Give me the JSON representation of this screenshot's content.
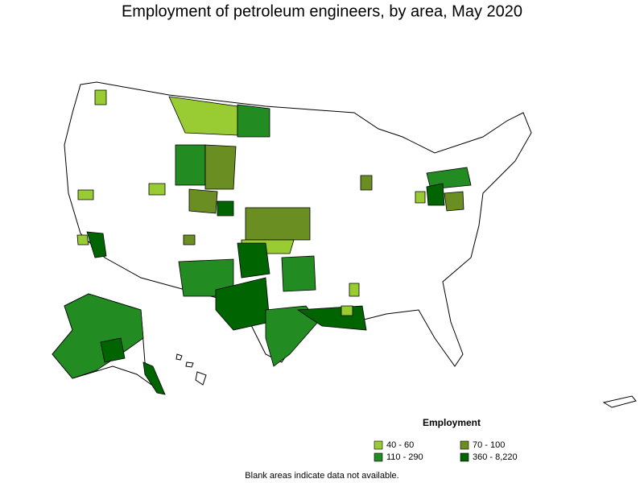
{
  "title": "Employment of petroleum engineers, by area, May 2020",
  "legend": {
    "title": "Employment",
    "items": [
      {
        "label": "40 - 60",
        "color": "#99cc33"
      },
      {
        "label": "70 - 100",
        "color": "#6b8e23"
      },
      {
        "label": "110 - 290",
        "color": "#228b22"
      },
      {
        "label": "360 - 8,220",
        "color": "#006400"
      }
    ]
  },
  "note": "Blank areas indicate data not available."
}
